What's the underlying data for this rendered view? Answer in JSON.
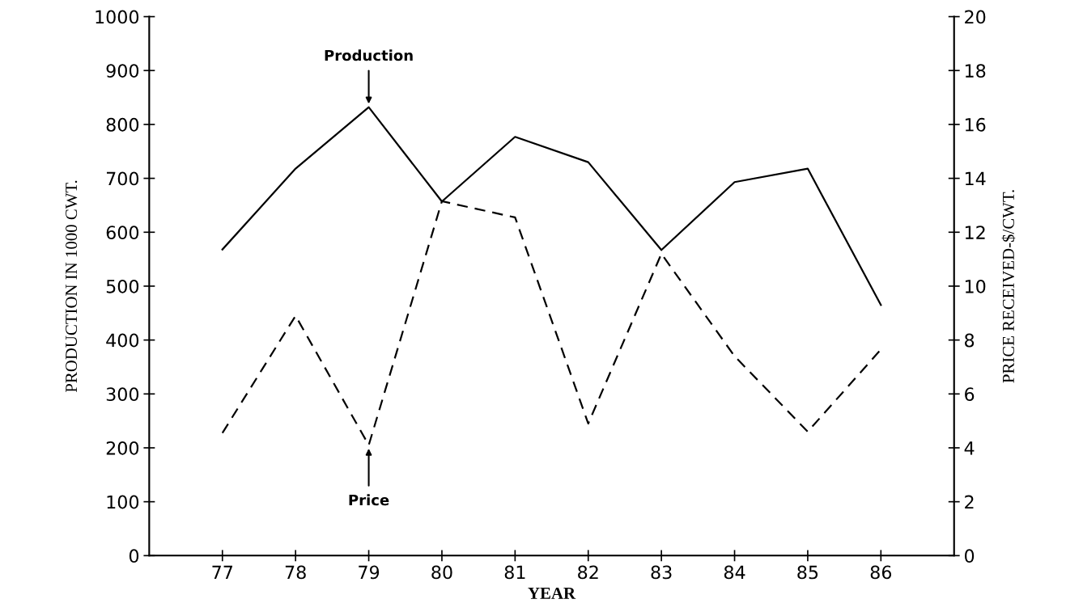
{
  "chart_data": {
    "type": "line",
    "xlabel": "YEAR",
    "ylabel": "PRODUCTION IN 1000 CWT.",
    "y2label": "PRICE RECEIVED-$/CWT.",
    "x": [
      77,
      78,
      79,
      80,
      81,
      82,
      83,
      84,
      85,
      86
    ],
    "series": [
      {
        "name": "Production",
        "color": "#000000",
        "line_style": "solid",
        "values": [
          568,
          718,
          832,
          657,
          777,
          730,
          567,
          693,
          718,
          465
        ]
      },
      {
        "name": "Price",
        "color": "#000000",
        "line_style": "dashed",
        "axis": "y2",
        "values": [
          4.55,
          8.9,
          4.1,
          13.15,
          12.55,
          4.9,
          11.2,
          7.4,
          4.6,
          7.65
        ]
      }
    ],
    "xlim": [
      76,
      87
    ],
    "xticks": [
      77,
      78,
      79,
      80,
      81,
      82,
      83,
      84,
      85,
      86
    ],
    "ylim": [
      0,
      1000
    ],
    "yticks": [
      0,
      100,
      200,
      300,
      400,
      500,
      600,
      700,
      800,
      900,
      1000
    ],
    "y2lim": [
      0,
      20
    ],
    "y2ticks": [
      0,
      2,
      4,
      6,
      8,
      10,
      12,
      14,
      16,
      18,
      20
    ],
    "grid": false,
    "legend": false,
    "marker": "none"
  }
}
